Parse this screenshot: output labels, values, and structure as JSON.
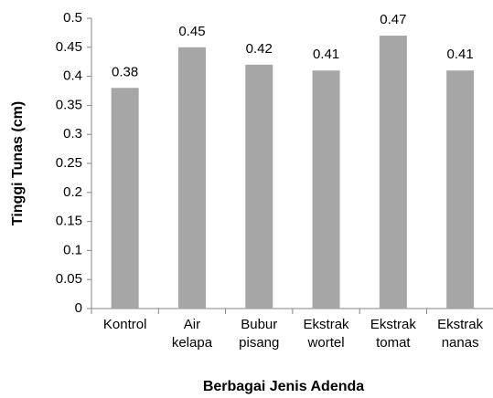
{
  "chart_data": {
    "type": "bar",
    "categories": [
      "Kontrol",
      "Air kelapa",
      "Bubur pisang",
      "Ekstrak wortel",
      "Ekstrak tomat",
      "Ekstrak nanas"
    ],
    "values": [
      0.38,
      0.45,
      0.42,
      0.41,
      0.47,
      0.41
    ],
    "color": "#a6a6a6",
    "ylim": [
      0,
      0.5
    ],
    "yticks": [
      0,
      0.05,
      0.1,
      0.15,
      0.2,
      0.25,
      0.3,
      0.35,
      0.4,
      0.45,
      0.5
    ],
    "y_label": "Tinggi Tunas (cm)",
    "x_label": "Berbagai Jenis Adenda"
  }
}
